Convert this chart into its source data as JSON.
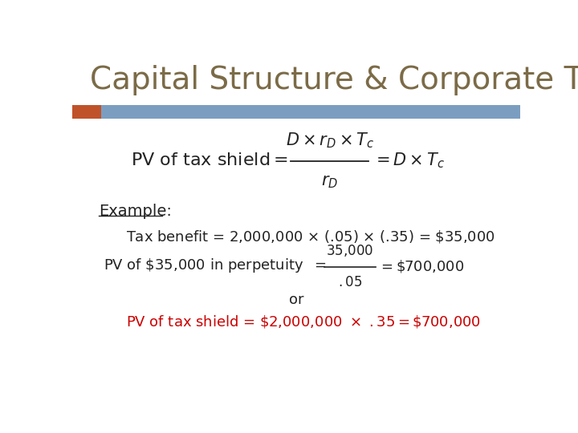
{
  "title": "Capital Structure & Corporate Taxes",
  "title_color": "#7B6B47",
  "title_fontsize": 28,
  "bg_color": "#FFFFFF",
  "bar_orange_color": "#C0522A",
  "bar_blue_color": "#7B9EC0",
  "example_label": "Example:",
  "line3": "or",
  "line4_color": "#CC0000",
  "text_color": "#222222",
  "formula_color": "#222222"
}
